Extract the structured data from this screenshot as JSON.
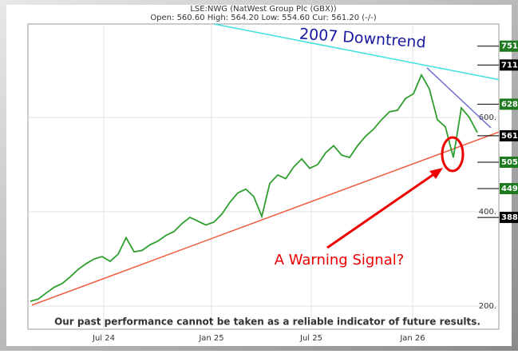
{
  "chart_data": {
    "type": "line",
    "title": "LSE:NWG (NatWest Group Plc (GBX))",
    "subtitle": "Open: 560.60 High: 564.20 Low: 554.60 Cur: 561.20 (-/-)",
    "x": [
      0,
      1,
      2,
      3,
      4,
      5,
      6,
      7,
      8,
      9,
      10,
      11,
      12,
      13,
      14,
      15,
      16,
      17,
      18,
      19,
      20,
      21,
      22,
      23,
      24,
      25,
      26,
      27,
      28,
      29,
      30,
      31,
      32,
      33,
      34,
      35,
      36,
      37,
      38,
      39,
      40,
      41,
      42,
      43,
      44,
      45,
      46,
      47,
      48,
      49,
      50,
      51,
      52,
      53,
      54,
      55,
      56
    ],
    "series": [
      {
        "color": "#2e9e2e",
        "values": [
          210,
          215,
          228,
          240,
          248,
          262,
          278,
          290,
          300,
          305,
          295,
          310,
          345,
          315,
          318,
          330,
          338,
          350,
          358,
          375,
          388,
          380,
          372,
          378,
          395,
          420,
          440,
          448,
          432,
          390,
          460,
          478,
          470,
          495,
          512,
          492,
          500,
          525,
          540,
          520,
          515,
          540,
          560,
          575,
          595,
          612,
          615,
          640,
          650,
          690,
          660,
          595,
          580,
          515,
          620,
          600,
          568
        ]
      }
    ],
    "xlim": [
      -0.3,
      58.7
    ],
    "ylim": [
      151,
      798
    ],
    "xticks": [
      {
        "value": 9.2,
        "label": "Jul 24"
      },
      {
        "value": 22.7,
        "label": "Jan 25"
      },
      {
        "value": 35.2,
        "label": "Jul 25"
      },
      {
        "value": 47.9,
        "label": "Jan 26"
      }
    ],
    "yticks": [
      {
        "value": 200,
        "label": "200."
      },
      {
        "value": 400,
        "label": "400."
      },
      {
        "value": 600,
        "label": "600."
      }
    ],
    "grid": true,
    "levels": [
      {
        "value": 751,
        "label": "751.",
        "color": "#1f7a1f"
      },
      {
        "value": 711,
        "label": "711.",
        "color": "#000000"
      },
      {
        "value": 628,
        "label": "628.",
        "color": "#1f7a1f"
      },
      {
        "value": 561,
        "label": "561.",
        "color": "#000000"
      },
      {
        "value": 505,
        "label": "505.",
        "color": "#1f7a1f"
      },
      {
        "value": 449,
        "label": "449.",
        "color": "#1f7a1f"
      },
      {
        "value": 388,
        "label": "388.",
        "color": "#000000"
      }
    ],
    "trendlines": [
      {
        "color": "#40e0e0",
        "x": [
          23,
          58.7
        ],
        "values": [
          798,
          680
        ]
      },
      {
        "color": "#f05a3c",
        "x": [
          0.2,
          58.7
        ],
        "values": [
          202,
          569
        ]
      },
      {
        "color": "#7070d0",
        "x": [
          49.7,
          57.7
        ],
        "values": [
          705,
          578
        ]
      }
    ],
    "annotations": [
      "2007 Downtrend",
      "A Warning Signal?",
      "Our past performance cannot be taken as a reliable indicator of future results."
    ]
  }
}
